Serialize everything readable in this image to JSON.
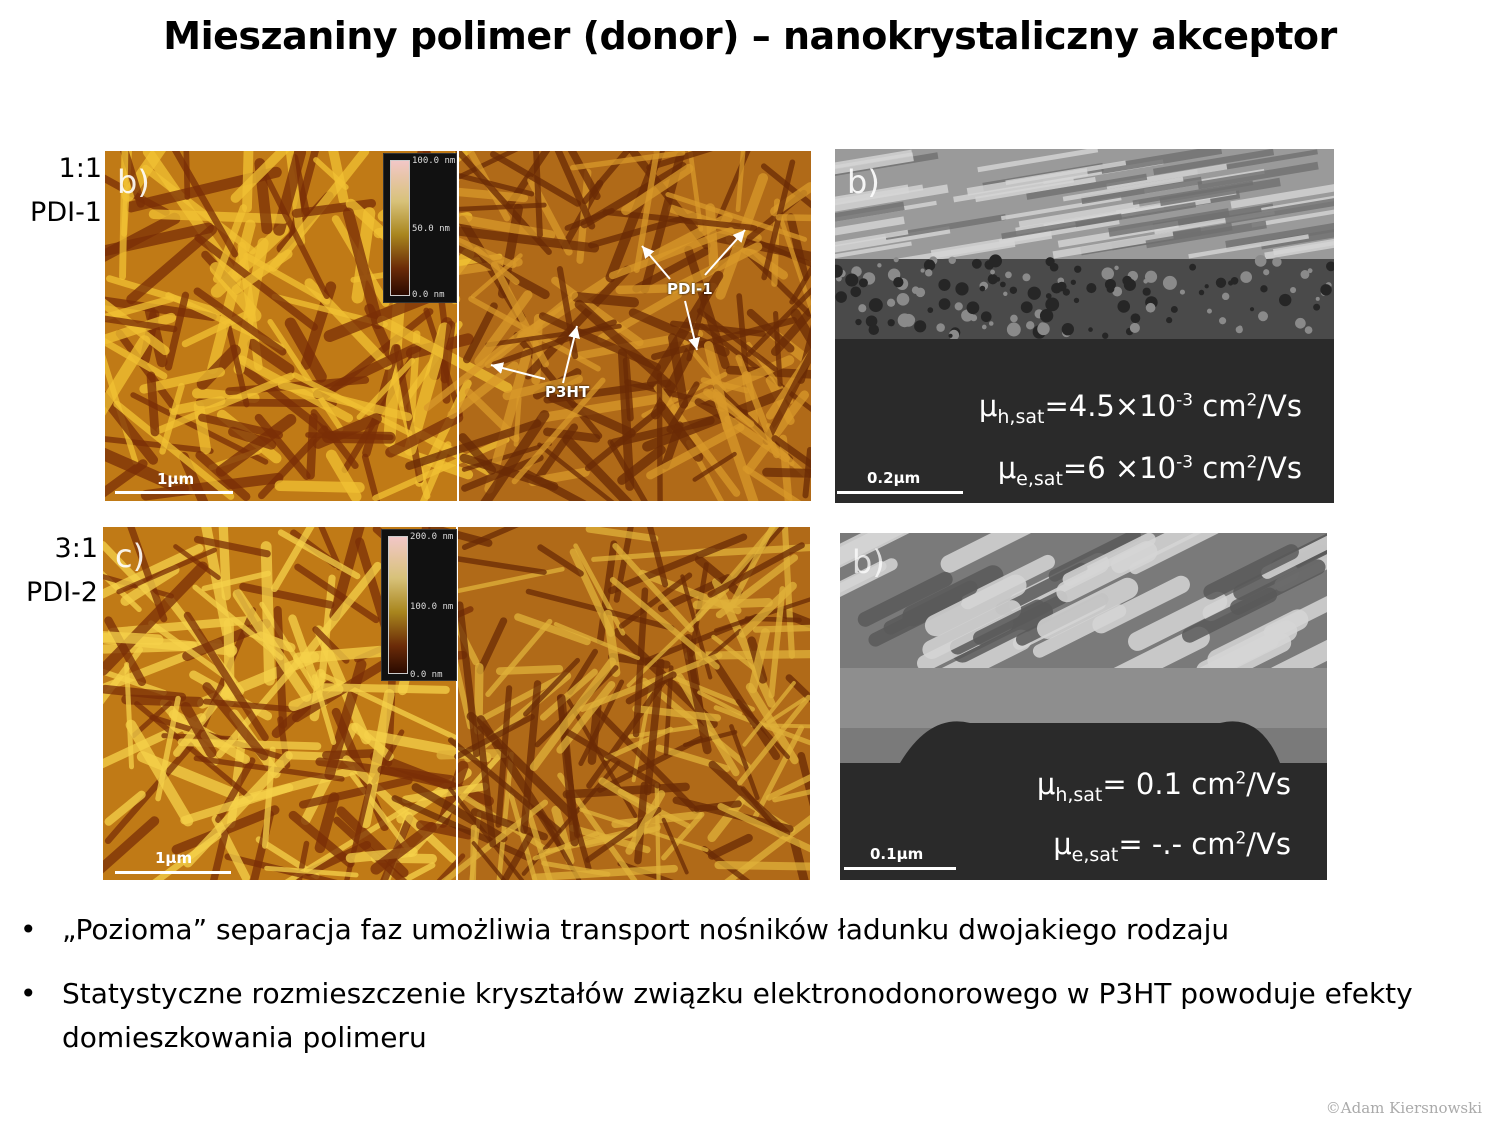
{
  "slide": {
    "title": "Mieszaniny polimer (donor) – nanokrystaliczny akceptor",
    "rows": [
      {
        "ratio": "1:1",
        "material": "PDI-1",
        "afm": {
          "label": "b)",
          "scale": "1μm",
          "colorbar": [
            "100.0 nm",
            "50.0 nm",
            "0.0 nm"
          ],
          "annotations": [
            "PDI-1",
            "P3HT"
          ]
        },
        "sem": {
          "label": "b)",
          "scale": "0.2μm",
          "mob_h": {
            "sym": "μ",
            "sub": "h,sat",
            "pre": "=4.5×10",
            "exp": "-3",
            "unit": " cm",
            "unit_exp": "2",
            "tail": "/Vs"
          },
          "mob_e": {
            "sym": "μ",
            "sub": "e,sat",
            "pre": "=6 ×10",
            "exp": "-3",
            "unit": " cm",
            "unit_exp": "2",
            "tail": "/Vs"
          }
        }
      },
      {
        "ratio": "3:1",
        "material": "PDI-2",
        "afm": {
          "label": "c)",
          "scale": "1μm",
          "colorbar": [
            "200.0 nm",
            "100.0 nm",
            "0.0 nm"
          ]
        },
        "sem": {
          "label": "b)",
          "scale": "0.1μm",
          "mob_h": {
            "sym": "μ",
            "sub": "h,sat",
            "pre": "= 0.1 cm",
            "exp": "2",
            "tail": "/Vs"
          },
          "mob_e": {
            "sym": "μ",
            "sub": "e,sat",
            "pre": "= -.- cm",
            "exp": "2",
            "tail": "/Vs"
          }
        }
      }
    ],
    "bullets": [
      "„Pozioma” separacja faz umożliwia transport nośników ładunku dwojakiego rodzaju",
      "Statystyczne rozmieszczenie kryształów związku elektronodonorowego w P3HT powoduje efekty domieszkowania polimeru"
    ],
    "bullet_char": "•",
    "copyright": "©Adam Kiersnowski",
    "colors": {
      "afm_dark": "#7a2e06",
      "afm_mid": "#c07a16",
      "afm_light": "#f2c233",
      "sem_dark": "#2a2a2a",
      "sem_light": "#d6d6d6"
    }
  }
}
